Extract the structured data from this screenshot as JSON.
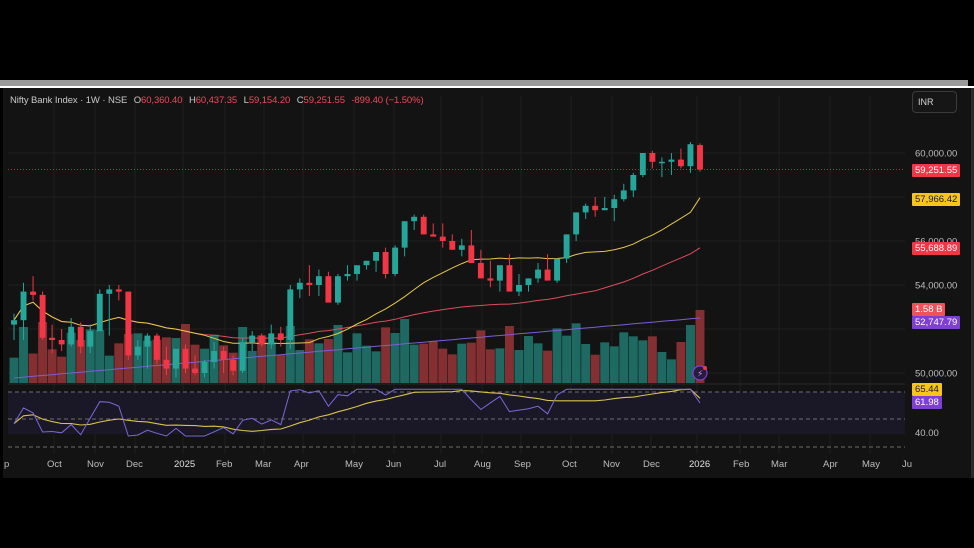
{
  "header": {
    "symbol": "Nifty Bank Index",
    "interval": "1W",
    "exchange": "NSE",
    "open_label": "O",
    "open": "60,360.40",
    "high_label": "H",
    "high": "60,437.35",
    "low_label": "L",
    "low": "59,154.20",
    "close_label": "C",
    "close": "59,251.55",
    "change": "-899.40 (−1.50%)",
    "currency": "INR"
  },
  "price_axis": {
    "ticks": [
      "60,000.00",
      "56,000.00",
      "54,000.00",
      "50,000.00"
    ],
    "tags": [
      {
        "name": "last-price-tag",
        "value": "59,251.55",
        "color": "#f23645",
        "text": "#ffffff"
      },
      {
        "name": "ma-fast-tag",
        "value": "57,966.42",
        "color": "#f5c518",
        "text": "#1a1a1a"
      },
      {
        "name": "ma-mid-tag",
        "value": "55,688.89",
        "color": "#f23645",
        "text": "#ffffff"
      },
      {
        "name": "volume-tag",
        "value": "1.58 B",
        "color": "#f0525a",
        "text": "#ffffff"
      },
      {
        "name": "volume-ma-tag",
        "value": "52,747.79",
        "color": "#7e3fd4",
        "text": "#ffffff"
      }
    ]
  },
  "rsi_axis": {
    "ticks": [
      "40.00"
    ],
    "tags": [
      {
        "name": "rsi-ma-tag",
        "value": "65.44",
        "color": "#f5c518",
        "text": "#1a1a1a"
      },
      {
        "name": "rsi-tag",
        "value": "61.98",
        "color": "#7e3fd4",
        "text": "#ffffff"
      }
    ]
  },
  "time_axis": {
    "labels": [
      "p",
      "Oct",
      "Nov",
      "Dec",
      "2025",
      "Feb",
      "Mar",
      "Apr",
      "May",
      "Jun",
      "Jul",
      "Aug",
      "Sep",
      "Oct",
      "Nov",
      "Dec",
      "2026",
      "Feb",
      "Mar",
      "Apr",
      "May",
      "Ju"
    ]
  },
  "colors": {
    "up": "#26a69a",
    "down": "#f23645",
    "vol_up": "#1f6f66",
    "vol_down": "#8a3034",
    "ma_fast": "#e6c84a",
    "ma_mid": "#e04a5e",
    "vol_ma": "#7a5fd6",
    "rsi": "#7b68d9",
    "rsi_ma": "#d9c24a"
  },
  "chart_data": {
    "type": "candlestick",
    "title": "Nifty Bank Index · 1W · NSE",
    "xlabel": "",
    "ylabel": "INR",
    "ylim": [
      49800,
      61200
    ],
    "x_tick_labels": [
      "p",
      "Oct",
      "Nov",
      "Dec",
      "2025",
      "Feb",
      "Mar",
      "Apr",
      "May",
      "Jun",
      "Jul",
      "Aug",
      "Sep",
      "Oct",
      "Nov",
      "Dec",
      "2026",
      "Feb",
      "Mar",
      "Apr",
      "May",
      "Ju"
    ],
    "y_tick_labels": [
      "60,000.00",
      "56,000.00",
      "54,000.00",
      "50,000.00"
    ],
    "last": {
      "open": 60360.4,
      "high": 60437.35,
      "low": 59154.2,
      "close": 59251.55,
      "change": -899.4,
      "change_pct": -1.5
    },
    "candles": [
      [
        52200,
        52700,
        51500,
        52400
      ],
      [
        52400,
        54100,
        51500,
        53700
      ],
      [
        53700,
        54400,
        53300,
        53550
      ],
      [
        53550,
        53700,
        51500,
        51600
      ],
      [
        51600,
        52200,
        50900,
        51500
      ],
      [
        51500,
        52000,
        51000,
        51300
      ],
      [
        51300,
        52500,
        51200,
        52100
      ],
      [
        52100,
        52300,
        50900,
        51200
      ],
      [
        51200,
        52200,
        50900,
        51900
      ],
      [
        51900,
        53800,
        51900,
        53600
      ],
      [
        53600,
        54000,
        51700,
        53800
      ],
      [
        53800,
        54000,
        53300,
        53700
      ],
      [
        53700,
        53700,
        50600,
        50800
      ],
      [
        50800,
        51500,
        50600,
        51200
      ],
      [
        51200,
        51800,
        50200,
        51700
      ],
      [
        51700,
        51800,
        50400,
        50600
      ],
      [
        50600,
        51200,
        49900,
        50200
      ],
      [
        50200,
        51000,
        49800,
        51100
      ],
      [
        51100,
        51300,
        50000,
        50200
      ],
      [
        50200,
        50800,
        49900,
        50000
      ],
      [
        50000,
        50600,
        49800,
        50500
      ],
      [
        50500,
        51400,
        50200,
        51000
      ],
      [
        51000,
        51200,
        50000,
        50600
      ],
      [
        50600,
        50800,
        49900,
        50100
      ],
      [
        50100,
        51600,
        50000,
        51400
      ],
      [
        51400,
        51900,
        51000,
        51700
      ],
      [
        51700,
        51800,
        51200,
        51300
      ],
      [
        51300,
        52200,
        51100,
        51800
      ],
      [
        51800,
        52100,
        51200,
        51500
      ],
      [
        51500,
        54000,
        51100,
        53800
      ],
      [
        53800,
        54300,
        53400,
        54100
      ],
      [
        54100,
        54900,
        53500,
        54000
      ],
      [
        54000,
        54700,
        53500,
        54400
      ],
      [
        54400,
        54600,
        53600,
        53200
      ],
      [
        53200,
        54500,
        53100,
        54400
      ],
      [
        54400,
        54900,
        54200,
        54500
      ],
      [
        54500,
        54800,
        54200,
        54900
      ],
      [
        54900,
        55100,
        54700,
        55100
      ],
      [
        55100,
        55400,
        54600,
        55500
      ],
      [
        55500,
        55700,
        54300,
        54500
      ],
      [
        54500,
        55800,
        54400,
        55700
      ],
      [
        55700,
        56100,
        55300,
        56900
      ],
      [
        56900,
        57200,
        56500,
        57100
      ],
      [
        57100,
        57200,
        56300,
        56300
      ],
      [
        56300,
        56800,
        56200,
        56200
      ],
      [
        56200,
        56800,
        55700,
        56000
      ],
      [
        56000,
        56300,
        55700,
        55600
      ],
      [
        55600,
        56100,
        55300,
        55800
      ],
      [
        55800,
        56500,
        55100,
        55000
      ],
      [
        55000,
        55600,
        54900,
        54300
      ],
      [
        54300,
        55100,
        53900,
        54200
      ],
      [
        54200,
        54800,
        53700,
        54900
      ],
      [
        54900,
        55400,
        54500,
        53700
      ],
      [
        53700,
        54500,
        53500,
        54000
      ],
      [
        54000,
        54300,
        53700,
        54300
      ],
      [
        54300,
        55000,
        54100,
        54700
      ],
      [
        54700,
        55400,
        54300,
        54200
      ],
      [
        54200,
        55100,
        54100,
        55200
      ],
      [
        55200,
        56300,
        55000,
        56300
      ],
      [
        56300,
        57000,
        56000,
        57300
      ],
      [
        57300,
        57700,
        57000,
        57600
      ],
      [
        57600,
        58000,
        57100,
        57400
      ],
      [
        57400,
        58000,
        57400,
        57500
      ],
      [
        57500,
        58100,
        56900,
        57900
      ],
      [
        57900,
        58600,
        57800,
        58300
      ],
      [
        58300,
        59100,
        58000,
        59000
      ],
      [
        59000,
        60000,
        58900,
        60000
      ],
      [
        60000,
        60100,
        59300,
        59600
      ],
      [
        59600,
        59800,
        58900,
        59600
      ],
      [
        59600,
        60000,
        59000,
        59700
      ],
      [
        59700,
        60200,
        59300,
        59400
      ],
      [
        59400,
        60500,
        59100,
        60400
      ],
      [
        60360.4,
        60437.35,
        59154.2,
        59251.55
      ]
    ],
    "volume_ma_label": "52,747.79",
    "volume_last": "1.58 B",
    "ma_fast_last": 57966.42,
    "ma_mid_last": 55688.89,
    "rsi": {
      "last": 61.98,
      "ma_last": 65.44,
      "levels": [
        70,
        50,
        30
      ],
      "axis_tick": "40.00"
    }
  }
}
